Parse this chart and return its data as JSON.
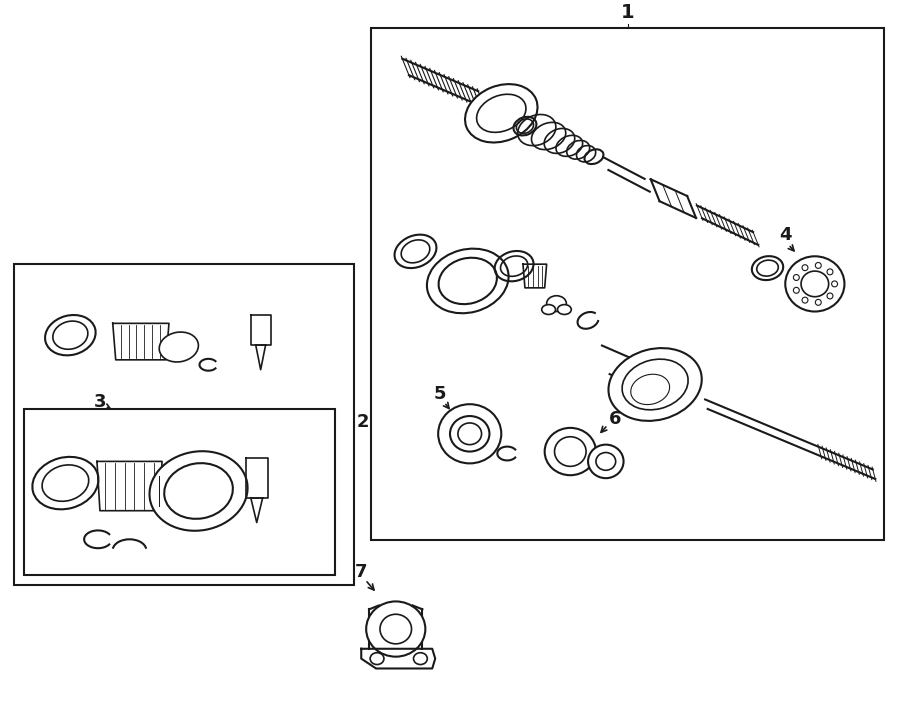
{
  "bg_color": "#ffffff",
  "line_color": "#1a1a1a",
  "fig_width": 9.0,
  "fig_height": 7.03,
  "dpi": 100,
  "label_fontsize": 13,
  "bold_label_fontsize": 14
}
